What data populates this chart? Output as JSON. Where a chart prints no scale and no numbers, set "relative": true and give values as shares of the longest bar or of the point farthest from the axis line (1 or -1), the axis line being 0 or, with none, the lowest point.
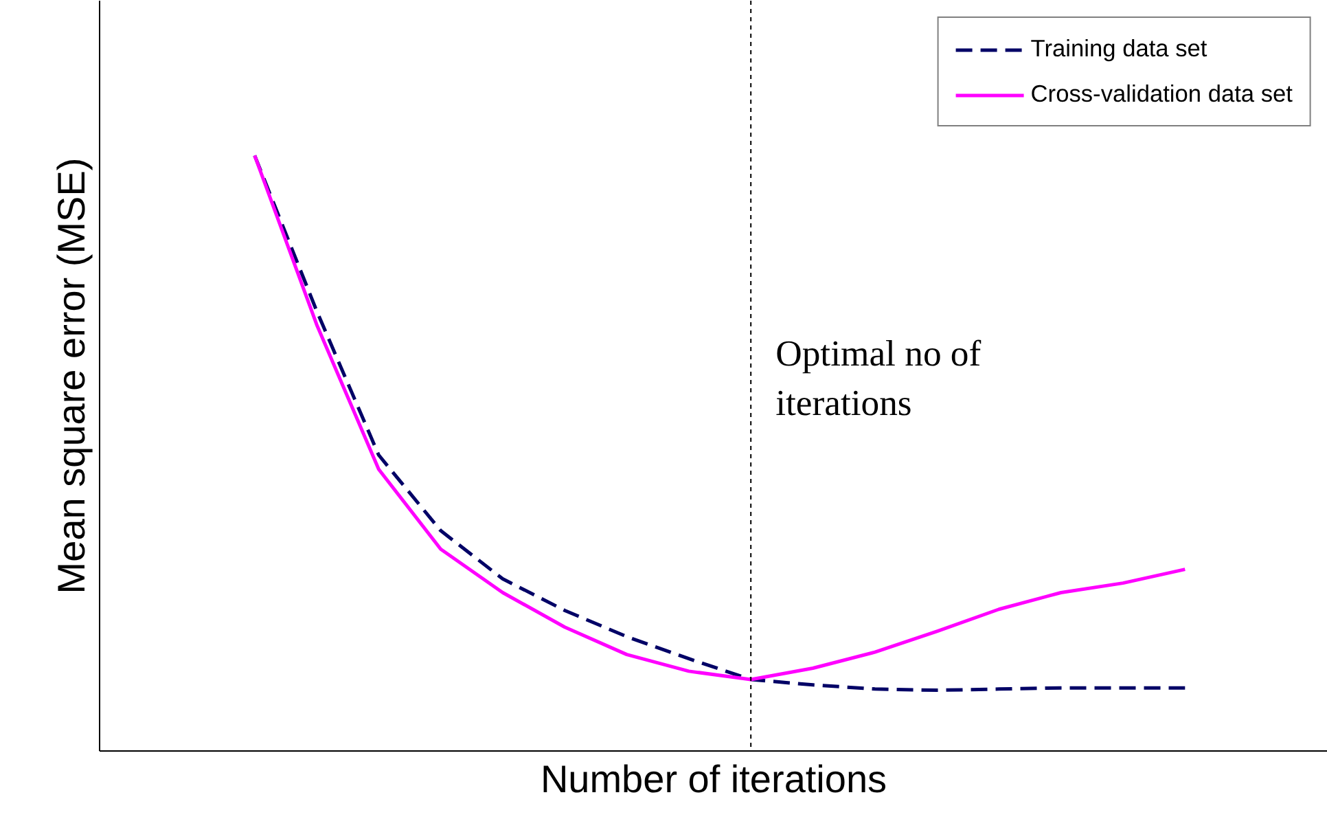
{
  "chart_data": {
    "type": "line",
    "relative": true,
    "xlabel": "Number of iterations",
    "ylabel": "Mean square error (MSE)",
    "categories": [
      null,
      null,
      null,
      null,
      null,
      null,
      null,
      null,
      null,
      null,
      null,
      null,
      null,
      null,
      null,
      null
    ],
    "series": [
      {
        "name": "Training data set",
        "color": "#000066",
        "line_style": "dashed",
        "values": [
          1,
          0.739,
          0.497,
          0.37,
          0.289,
          0.236,
          0.192,
          0.155,
          0.12,
          0.111,
          0.104,
          0.102,
          0.104,
          0.106,
          0.106,
          0.106
        ]
      },
      {
        "name": "Cross-validation data set",
        "color": "#ff00ff",
        "line_style": "solid",
        "values": [
          1,
          0.716,
          0.473,
          0.339,
          0.266,
          0.208,
          0.162,
          0.134,
          0.12,
          0.139,
          0.166,
          0.201,
          0.238,
          0.266,
          0.282,
          0.305
        ]
      }
    ],
    "annotations": [
      "Optimal no of\niterations"
    ],
    "legend": "top right",
    "marker": "none"
  }
}
